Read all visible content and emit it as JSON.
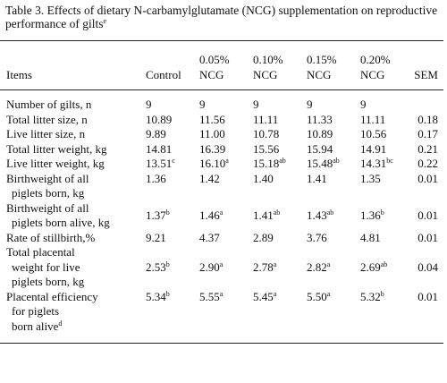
{
  "caption": {
    "text": "Table 3. Effects of dietary N-carbamylglutamate (NCG) supplementation on reproductive performance of gilts",
    "sup": "e"
  },
  "header": {
    "items": "Items",
    "columns": [
      [
        "Control"
      ],
      [
        "0.05%",
        "NCG"
      ],
      [
        "0.10%",
        "NCG"
      ],
      [
        "0.15%",
        "NCG"
      ],
      [
        "0.20%",
        "NCG"
      ]
    ],
    "sem": "SEM"
  },
  "rows": [
    {
      "label": [
        "Number of gilts, n"
      ],
      "values": [
        "9",
        "9",
        "9",
        "9",
        "9"
      ]
    },
    {
      "label": [
        "Total litter size, n"
      ],
      "values": [
        "10.89",
        "11.56",
        "11.11",
        "11.33",
        "11.11"
      ],
      "sem": "0.18"
    },
    {
      "label": [
        "Live litter size, n"
      ],
      "values": [
        "9.89",
        "11.00",
        "10.78",
        "10.89",
        "10.56"
      ],
      "sem": "0.17"
    },
    {
      "label": [
        "Total litter weight, kg"
      ],
      "values": [
        "14.81",
        "16.39",
        "15.56",
        "15.94",
        "14.91"
      ],
      "sem": "0.21"
    },
    {
      "label": [
        "Live litter weight, kg"
      ],
      "values": [
        {
          "text": "13.51",
          "sup": "c"
        },
        {
          "text": "16.10",
          "sup": "a"
        },
        {
          "text": "15.18",
          "sup": "ab"
        },
        {
          "text": "15.48",
          "sup": "ab"
        },
        {
          "text": "14.31",
          "sup": "bc"
        }
      ],
      "sem": "0.22"
    },
    {
      "label": [
        "Birthweight of all",
        "piglets born, kg"
      ],
      "values": [
        "1.36",
        "1.42",
        "1.40",
        "1.41",
        "1.35"
      ],
      "sem": "0.01"
    },
    {
      "label": [
        "Birthweight of all",
        "piglets born alive, kg"
      ],
      "values": [
        {
          "text": "1.37",
          "sup": "b"
        },
        {
          "text": "1.46",
          "sup": "a"
        },
        {
          "text": "1.41",
          "sup": "ab"
        },
        {
          "text": "1.43",
          "sup": "ab"
        },
        {
          "text": "1.36",
          "sup": "b"
        }
      ],
      "sem": "0.01"
    },
    {
      "label": [
        "Rate of stillbirth,%"
      ],
      "values": [
        "9.21",
        "4.37",
        "2.89",
        "3.76",
        "4.81"
      ],
      "sem": "0.01"
    },
    {
      "label": [
        "Total placental",
        "weight for live",
        "piglets born, kg"
      ],
      "values": [
        {
          "text": "2.53",
          "sup": "b"
        },
        {
          "text": "2.90",
          "sup": "a"
        },
        {
          "text": "2.78",
          "sup": "a"
        },
        {
          "text": "2.82",
          "sup": "a"
        },
        {
          "text": "2.69",
          "sup": "ab"
        }
      ],
      "sem": "0.04"
    },
    {
      "label": [
        "Placental efficiency",
        "for piglets",
        "born alive"
      ],
      "label_sup": "d",
      "values": [
        {
          "text": "5.34",
          "sup": "b"
        },
        {
          "text": "5.55",
          "sup": "a"
        },
        {
          "text": "5.45",
          "sup": "a"
        },
        {
          "text": "5.50",
          "sup": "a"
        },
        {
          "text": "5.32",
          "sup": "b"
        }
      ],
      "sem": "0.01"
    }
  ]
}
